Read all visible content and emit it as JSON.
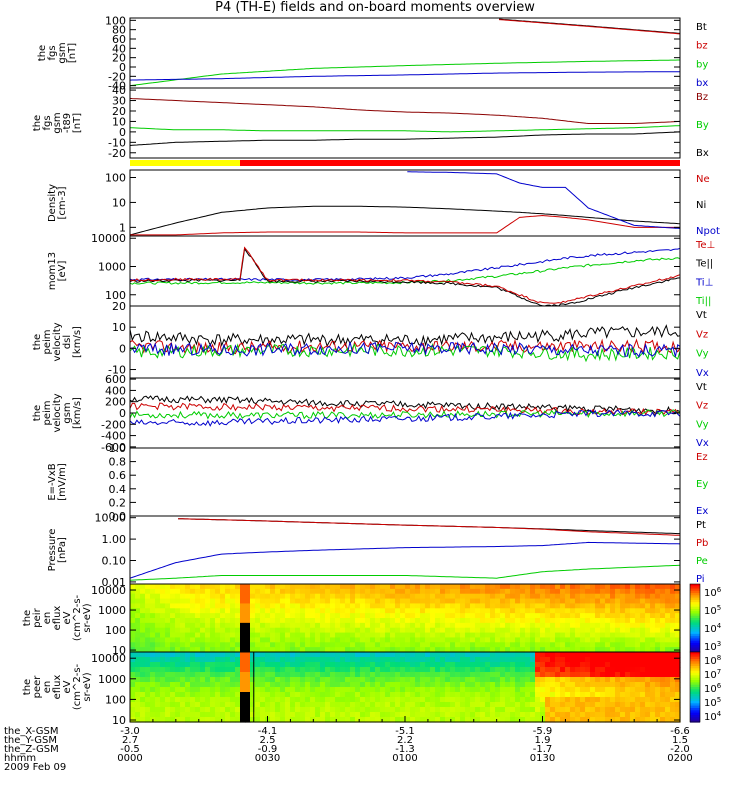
{
  "title": "P4 (TH-E) fields and on-board moments overview",
  "colors": {
    "black": "#000000",
    "red": "#cc0000",
    "green": "#00cc00",
    "blue": "#0000cc",
    "darkred": "#8b0000",
    "yellow": "#ffff00",
    "brightred": "#ff0000"
  },
  "footer": {
    "rows": [
      {
        "label": "the_X-GSM",
        "values": [
          "-3.0",
          "-4.1",
          "-5.1",
          "-5.9",
          "-6.6"
        ]
      },
      {
        "label": "the_Y-GSM",
        "values": [
          "2.7",
          "2.5",
          "2.2",
          "1.9",
          "1.5"
        ]
      },
      {
        "label": "the_Z-GSM",
        "values": [
          "-0.5",
          "-0.9",
          "-1.3",
          "-1.7",
          "-2.0"
        ]
      },
      {
        "label": "hhmm",
        "values": [
          "0000",
          "0030",
          "0100",
          "0130",
          "0200"
        ]
      }
    ],
    "date": "2009 Feb 09"
  },
  "chart_data": [
    {
      "type": "line",
      "ylabel": [
        "the",
        "fgs",
        "gsm",
        "[nT]"
      ],
      "yticks": [
        -40,
        -20,
        0,
        20,
        40,
        60,
        80,
        100
      ],
      "ylim": [
        -45,
        105
      ],
      "legend": [
        {
          "name": "Bt",
          "color": "#000000"
        },
        {
          "name": "bz",
          "color": "#cc0000"
        },
        {
          "name": "by",
          "color": "#00cc00"
        },
        {
          "name": "bx",
          "color": "#0000cc"
        }
      ],
      "x_minutes": [
        0,
        20,
        40,
        60,
        80,
        100,
        120
      ],
      "series": [
        {
          "name": "Bt",
          "color": "#000000",
          "values": [
            null,
            null,
            null,
            null,
            103,
            88,
            72
          ]
        },
        {
          "name": "bz",
          "color": "#cc0000",
          "values": [
            null,
            null,
            null,
            null,
            102,
            87,
            71
          ]
        },
        {
          "name": "by",
          "color": "#00cc00",
          "values": [
            -40,
            -15,
            -3,
            3,
            8,
            12,
            15
          ]
        },
        {
          "name": "bx",
          "color": "#0000cc",
          "values": [
            -28,
            -25,
            -20,
            -17,
            -13,
            -11,
            -10
          ]
        }
      ]
    },
    {
      "type": "line",
      "ylabel": [
        "the",
        "fgs",
        "gsm",
        "-t89",
        "[nT]"
      ],
      "yticks": [
        -20,
        -10,
        0,
        10,
        20,
        30,
        40
      ],
      "ylim": [
        -25,
        42
      ],
      "legend": [
        {
          "name": "Bz",
          "color": "#8b0000"
        },
        {
          "name": "By",
          "color": "#00cc00"
        },
        {
          "name": "Bx",
          "color": "#000000"
        }
      ],
      "x_minutes": [
        0,
        10,
        20,
        30,
        40,
        50,
        60,
        70,
        80,
        90,
        100,
        110,
        120
      ],
      "series": [
        {
          "name": "Bz",
          "color": "#8b0000",
          "values": [
            32,
            30,
            28,
            26,
            24,
            21,
            19,
            18,
            16,
            13,
            8,
            8,
            10
          ]
        },
        {
          "name": "By",
          "color": "#00cc00",
          "values": [
            4,
            2,
            2,
            1,
            1,
            1,
            1,
            0,
            1,
            2,
            3,
            4,
            6
          ]
        },
        {
          "name": "Bx",
          "color": "#000000",
          "values": [
            -13,
            -10,
            -9,
            -8,
            -8,
            -7,
            -7,
            -6,
            -5,
            -3,
            -2,
            -2,
            0
          ]
        }
      ]
    },
    {
      "type": "line",
      "ylog": true,
      "ylabel": [
        "Density",
        "[cm-3]"
      ],
      "yticks": [
        1,
        10,
        100
      ],
      "ylim": [
        0.45,
        200
      ],
      "legend": [
        {
          "name": "Ne",
          "color": "#cc0000"
        },
        {
          "name": "Ni",
          "color": "#000000"
        },
        {
          "name": "Npot",
          "color": "#0000cc"
        }
      ],
      "x_minutes": [
        0,
        10,
        20,
        30,
        40,
        50,
        60,
        70,
        80,
        85,
        90,
        95,
        100,
        110,
        120
      ],
      "series": [
        {
          "name": "Ni",
          "color": "#000000",
          "values": [
            0.5,
            1.5,
            4,
            6,
            7,
            7,
            6.5,
            5.5,
            4.5,
            4,
            3.5,
            3,
            2.5,
            1.8,
            1.4
          ]
        },
        {
          "name": "Ne",
          "color": "#cc0000",
          "values": [
            0.5,
            0.5,
            0.6,
            0.65,
            0.65,
            0.65,
            0.6,
            0.6,
            0.6,
            2.5,
            3,
            2.5,
            2,
            1,
            1
          ]
        },
        {
          "name": "Npot",
          "color": "#0000cc",
          "values": [
            null,
            null,
            null,
            null,
            null,
            null,
            170,
            160,
            140,
            60,
            40,
            40,
            6,
            1.2,
            0.9
          ]
        }
      ]
    },
    {
      "type": "line",
      "ylog": true,
      "ylabel": [
        "mom13",
        "[eV]"
      ],
      "yticks": [
        100,
        1000,
        10000
      ],
      "ylim": [
        40,
        12000
      ],
      "legend": [
        {
          "name": "Te⊥",
          "color": "#cc0000"
        },
        {
          "name": "Te||",
          "color": "#000000"
        },
        {
          "name": "Ti⊥",
          "color": "#0000cc"
        },
        {
          "name": "Ti||",
          "color": "#00cc00"
        }
      ],
      "x_minutes": [
        0,
        10,
        20,
        24,
        25,
        30,
        40,
        50,
        60,
        70,
        80,
        90,
        95,
        100,
        110,
        120
      ],
      "series": [
        {
          "name": "Ti⊥",
          "color": "#0000cc",
          "values": [
            350,
            350,
            350,
            350,
            350,
            350,
            340,
            360,
            400,
            550,
            900,
            1500,
            2000,
            2400,
            3200,
            4000
          ]
        },
        {
          "name": "Ti||",
          "color": "#00cc00",
          "values": [
            260,
            260,
            270,
            270,
            270,
            270,
            260,
            260,
            270,
            320,
            450,
            700,
            900,
            1100,
            1600,
            2000
          ]
        },
        {
          "name": "Te||",
          "color": "#000000",
          "values": [
            300,
            320,
            320,
            330,
            4500,
            300,
            300,
            300,
            290,
            250,
            180,
            40,
            45,
            70,
            180,
            400
          ]
        },
        {
          "name": "Te⊥",
          "color": "#cc0000",
          "values": [
            330,
            350,
            350,
            360,
            5000,
            330,
            330,
            330,
            320,
            280,
            200,
            50,
            55,
            90,
            200,
            500
          ]
        }
      ]
    },
    {
      "type": "line",
      "ylabel": [
        "the",
        "peim",
        "velocity",
        "dsl",
        "[km/s]"
      ],
      "yticks": [
        -10,
        0,
        10,
        20
      ],
      "ylim": [
        -14,
        20
      ],
      "legend": [
        {
          "name": "Vt",
          "color": "#000000"
        },
        {
          "name": "Vz",
          "color": "#cc0000"
        },
        {
          "name": "Vy",
          "color": "#00cc00"
        },
        {
          "name": "Vx",
          "color": "#0000cc"
        }
      ],
      "x_minutes": [
        0,
        20,
        40,
        60,
        80,
        100,
        120
      ],
      "series": [
        {
          "name": "Vt",
          "color": "#000000",
          "values": [
            6,
            4,
            4,
            4,
            5,
            7,
            8
          ]
        },
        {
          "name": "Vz",
          "color": "#cc0000",
          "values": [
            1,
            0,
            1,
            1,
            1,
            1,
            1
          ]
        },
        {
          "name": "Vy",
          "color": "#00cc00",
          "values": [
            -2,
            -1,
            -1,
            -1,
            -1,
            -3,
            -2
          ]
        },
        {
          "name": "Vx",
          "color": "#0000cc",
          "values": [
            0,
            -1,
            0,
            0,
            0,
            -1,
            -1
          ]
        }
      ]
    },
    {
      "type": "line",
      "ylabel": [
        "the",
        "peim",
        "velocity",
        "gsm",
        "[km/s]"
      ],
      "yticks": [
        -600,
        -400,
        -200,
        0,
        200,
        400,
        600
      ],
      "ylim": [
        -620,
        620
      ],
      "legend": [
        {
          "name": "Vt",
          "color": "#000000"
        },
        {
          "name": "Vz",
          "color": "#cc0000"
        },
        {
          "name": "Vy",
          "color": "#00cc00"
        },
        {
          "name": "Vx",
          "color": "#0000cc"
        }
      ],
      "x_minutes": [
        0,
        20,
        40,
        60,
        80,
        100,
        120
      ],
      "series": [
        {
          "name": "Vt",
          "color": "#000000",
          "values": [
            250,
            230,
            180,
            150,
            120,
            80,
            40
          ]
        },
        {
          "name": "Vz",
          "color": "#cc0000",
          "values": [
            120,
            110,
            90,
            80,
            60,
            20,
            10
          ]
        },
        {
          "name": "Vy",
          "color": "#00cc00",
          "values": [
            -30,
            -40,
            -40,
            -30,
            -20,
            -10,
            0
          ]
        },
        {
          "name": "Vx",
          "color": "#0000cc",
          "values": [
            -180,
            -170,
            -130,
            -100,
            -60,
            -10,
            0
          ]
        }
      ]
    },
    {
      "type": "line",
      "ylabel": [
        "E=-VxB",
        "[mV/m]"
      ],
      "yticks": [
        0.0,
        0.2,
        0.4,
        0.6,
        0.8,
        1.0
      ],
      "yticklabels": [
        "0.0",
        "0.2",
        "0.4",
        "0.6",
        "0.8",
        "1.0"
      ],
      "ylim": [
        0,
        1
      ],
      "legend": [
        {
          "name": "Ez",
          "color": "#cc0000"
        },
        {
          "name": "Ey",
          "color": "#00cc00"
        },
        {
          "name": "Ex",
          "color": "#0000cc"
        }
      ],
      "x_minutes": [],
      "series": []
    },
    {
      "type": "line",
      "ylog": true,
      "ylabel": [
        "Pressure",
        "[nPa]"
      ],
      "yticks": [
        0.01,
        0.1,
        1,
        10
      ],
      "yticklabels": [
        "0.01",
        "0.10",
        "1.00",
        "10.00"
      ],
      "ylim": [
        0.008,
        12
      ],
      "legend": [
        {
          "name": "Pt",
          "color": "#000000"
        },
        {
          "name": "Pb",
          "color": "#cc0000"
        },
        {
          "name": "Pe",
          "color": "#00cc00"
        },
        {
          "name": "Pi",
          "color": "#0000cc"
        }
      ],
      "x_minutes": [
        0,
        10,
        20,
        30,
        40,
        60,
        80,
        90,
        100,
        120
      ],
      "series": [
        {
          "name": "Pt",
          "color": "#000000",
          "values": [
            null,
            9,
            8,
            7,
            6,
            4.5,
            3.5,
            3,
            2.5,
            1.8
          ]
        },
        {
          "name": "Pb",
          "color": "#cc0000",
          "values": [
            null,
            9,
            8,
            7,
            6,
            4.5,
            3.5,
            2.9,
            2.2,
            1.5
          ]
        },
        {
          "name": "Pi",
          "color": "#0000cc",
          "values": [
            0.015,
            0.08,
            0.2,
            0.25,
            0.3,
            0.4,
            0.45,
            0.5,
            0.7,
            0.6
          ]
        },
        {
          "name": "Pe",
          "color": "#00cc00",
          "values": [
            0.012,
            0.015,
            0.02,
            0.02,
            0.02,
            0.02,
            0.015,
            0.03,
            0.04,
            0.06
          ]
        }
      ]
    },
    {
      "type": "heatmap",
      "ylog": true,
      "ylabel": [
        "the",
        "peir",
        "en",
        "eflux",
        "eV",
        "(cm^2-s-",
        "sr-eV)"
      ],
      "yticks": [
        10,
        100,
        1000,
        10000
      ],
      "ylim": [
        8,
        20000
      ],
      "colorbar": {
        "ticks": [
          "10^3",
          "10^4",
          "10^5",
          "10^6"
        ]
      }
    },
    {
      "type": "heatmap",
      "ylog": true,
      "ylabel": [
        "the",
        "peer",
        "en",
        "eflux",
        "eV",
        "(cm^2-s-",
        "sr-eV)"
      ],
      "yticks": [
        10,
        100,
        1000,
        10000
      ],
      "ylim": [
        8,
        20000
      ],
      "colorbar": {
        "ticks": [
          "10^4",
          "10^5",
          "10^6",
          "10^7",
          "10^8"
        ]
      }
    }
  ]
}
